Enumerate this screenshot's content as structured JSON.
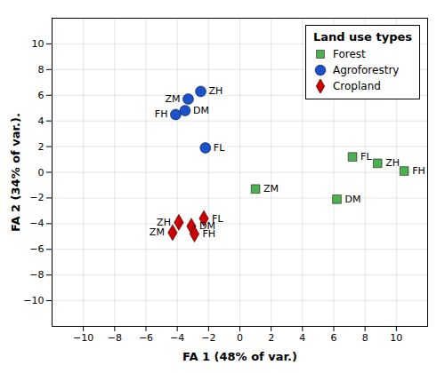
{
  "chart_data": {
    "type": "scatter",
    "xlabel": "FA 1 (48% of var.)",
    "ylabel": "FA 2 (34% of var.).",
    "xlim": [
      -12,
      12
    ],
    "ylim": [
      -12,
      12
    ],
    "xticks": [
      -10,
      -8,
      -6,
      -4,
      -2,
      0,
      2,
      4,
      6,
      8,
      10
    ],
    "yticks": [
      -10,
      -8,
      -6,
      -4,
      -2,
      0,
      2,
      4,
      6,
      8,
      10
    ],
    "grid": true,
    "legend": "upper right",
    "legend_title": "Land use types",
    "series": [
      {
        "name": "Forest",
        "color": "#4CAF50",
        "marker": "square",
        "x": [
          7.2,
          8.8,
          10.5,
          1.0,
          6.2
        ],
        "y": [
          1.2,
          0.7,
          0.1,
          -1.3,
          -2.1
        ],
        "labels": [
          "FL",
          "ZH",
          "FH",
          "ZM",
          "DM"
        ]
      },
      {
        "name": "Agroforestry",
        "color": "#1A52CC",
        "marker": "circle",
        "x": [
          -2.5,
          -3.3,
          -3.5,
          -4.1,
          -2.2
        ],
        "y": [
          6.3,
          5.7,
          4.8,
          4.5,
          1.9
        ],
        "labels": [
          "ZH",
          "ZM",
          "DM",
          "FH",
          "FL"
        ]
      },
      {
        "name": "Cropland",
        "color": "#CC0000",
        "marker": "diamond",
        "x": [
          -2.3,
          -3.1,
          -2.9,
          -3.9,
          -4.3
        ],
        "y": [
          -3.6,
          -4.2,
          -4.8,
          -3.9,
          -4.7
        ],
        "labels": [
          "FL",
          "DM",
          "FH",
          "ZH",
          "ZM"
        ]
      }
    ]
  }
}
